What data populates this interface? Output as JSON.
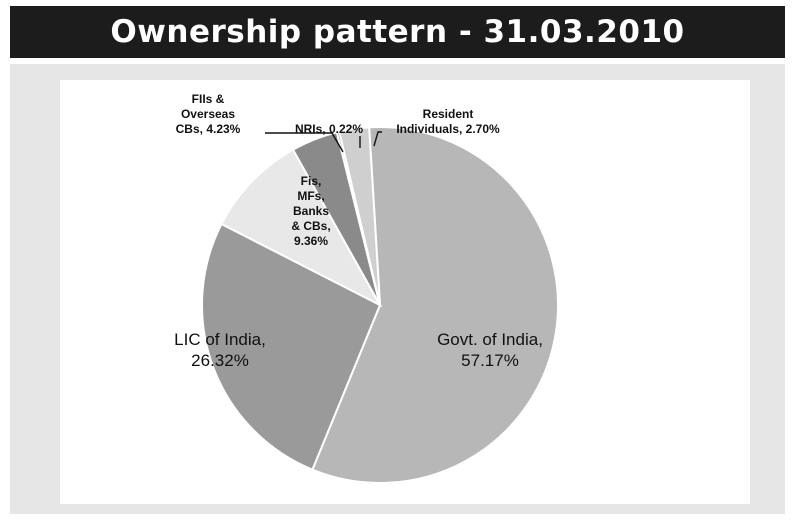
{
  "title": "Ownership pattern - 31.03.2010",
  "chart_data": {
    "type": "pie",
    "title": "Ownership pattern - 31.03.2010",
    "slices": [
      {
        "label": "Govt. of India",
        "value": 57.17,
        "color": "#b7b7b7",
        "lines": [
          "Govt. of India,",
          "57.17%"
        ]
      },
      {
        "label": "LIC of India",
        "value": 26.32,
        "color": "#9a9a9a",
        "lines": [
          "LIC of India,",
          "26.32%"
        ]
      },
      {
        "label": "Fis, MFs, Banks & CBs",
        "value": 9.36,
        "color": "#e8e8e8",
        "lines": [
          "Fis,",
          "MFs,",
          "Banks",
          "& CBs,",
          "9.36%"
        ]
      },
      {
        "label": "FIIs & Overseas CBs",
        "value": 4.23,
        "color": "#8a8a8a",
        "lines": [
          "FIIs &",
          "Overseas",
          "CBs, 4.23%"
        ]
      },
      {
        "label": "NRIs",
        "value": 0.22,
        "color": "#5a5a5a",
        "lines": [
          "NRIs, 0.22%"
        ]
      },
      {
        "label": "Resident Individuals",
        "value": 2.7,
        "color": "#cfcfcf",
        "lines": [
          "Resident",
          "Individuals, 2.70%"
        ]
      }
    ]
  }
}
